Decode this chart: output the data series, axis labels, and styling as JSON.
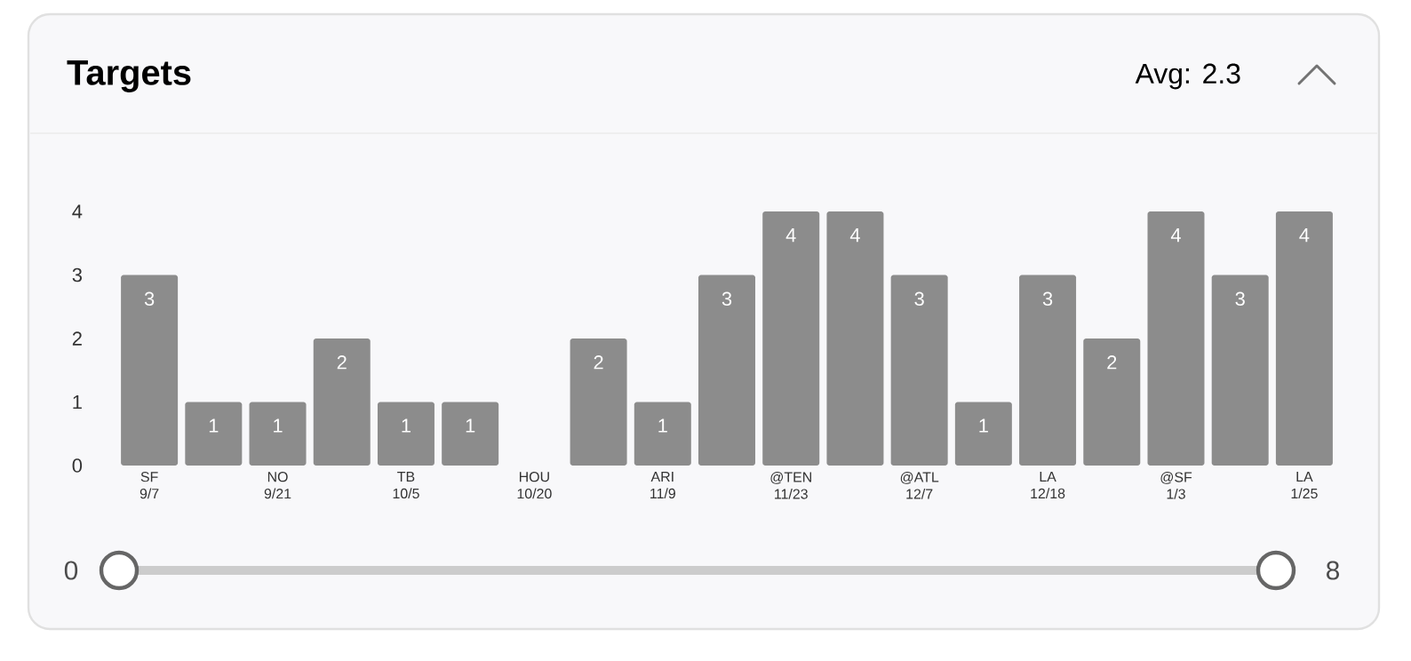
{
  "chart_data": {
    "type": "bar",
    "title": "Targets",
    "annotations": [
      "Avg: 2.3",
      "0",
      "8"
    ],
    "categories": [
      "SF 9/7",
      null,
      "NO 9/21",
      null,
      "TB 10/5",
      null,
      "HOU 10/20",
      null,
      "ARI 11/9",
      null,
      "@TEN 11/23",
      null,
      "@ATL 12/7",
      null,
      "LA 12/18",
      null,
      "@SF 1/3",
      null,
      "LA 1/25"
    ],
    "values": [
      3,
      1,
      1,
      2,
      1,
      1,
      0,
      2,
      1,
      3,
      4,
      4,
      3,
      1,
      3,
      2,
      4,
      3,
      4
    ],
    "value_labels": [
      "3",
      "1",
      "1",
      "2",
      "1",
      "1",
      null,
      "2",
      "1",
      "3",
      "4",
      "4",
      "3",
      "1",
      "3",
      "2",
      "4",
      "3",
      "4"
    ],
    "color": "#8c8c8c",
    "ylim": [
      0,
      4
    ],
    "yticks": [
      0,
      1,
      2,
      3,
      4
    ]
  }
}
